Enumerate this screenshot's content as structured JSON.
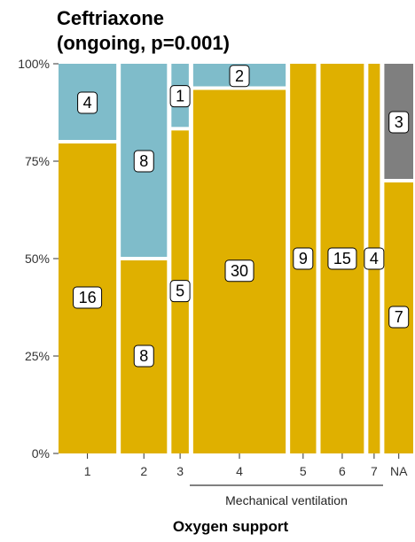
{
  "chart_data": {
    "type": "mosaic",
    "title_lines": [
      "Ceftriaxone",
      "(ongoing, p=0.001)"
    ],
    "xlabel": "Oxygen support",
    "x_group_annotation": {
      "label": "Mechanical ventilation",
      "spans": [
        "4",
        "5",
        "6",
        "7"
      ]
    },
    "ylim": [
      0,
      1
    ],
    "yticks": [
      {
        "value": 0,
        "label": "0%"
      },
      {
        "value": 0.25,
        "label": "25%"
      },
      {
        "value": 0.5,
        "label": "50%"
      },
      {
        "value": 0.75,
        "label": "75%"
      },
      {
        "value": 1,
        "label": "100%"
      }
    ],
    "segment_colors": {
      "gold": "#DFB000",
      "blue": "#7FBCCA",
      "gray": "#7F7F7F"
    },
    "columns": [
      {
        "category": "1",
        "segments": [
          {
            "count": "16",
            "color": "gold"
          },
          {
            "count": "4",
            "color": "blue"
          }
        ]
      },
      {
        "category": "2",
        "segments": [
          {
            "count": "8",
            "color": "gold"
          },
          {
            "count": "8",
            "color": "blue"
          }
        ]
      },
      {
        "category": "3",
        "segments": [
          {
            "count": "5",
            "color": "gold"
          },
          {
            "count": "1",
            "color": "blue"
          }
        ]
      },
      {
        "category": "4",
        "segments": [
          {
            "count": "30",
            "color": "gold"
          },
          {
            "count": "2",
            "color": "blue"
          }
        ]
      },
      {
        "category": "5",
        "segments": [
          {
            "count": "9",
            "color": "gold"
          }
        ]
      },
      {
        "category": "6",
        "segments": [
          {
            "count": "15",
            "color": "gold"
          }
        ]
      },
      {
        "category": "7",
        "segments": [
          {
            "count": "4",
            "color": "gold"
          }
        ]
      },
      {
        "category": "NA",
        "segments": [
          {
            "count": "7",
            "color": "gold"
          },
          {
            "count": "3",
            "color": "gray"
          }
        ]
      }
    ]
  }
}
